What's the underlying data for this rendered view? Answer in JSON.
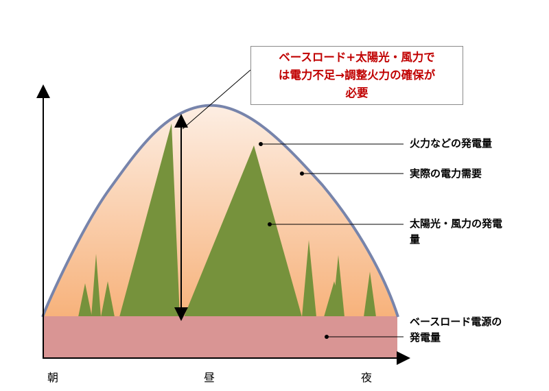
{
  "callout": {
    "line1": "ベースロード+太陽光・風力で",
    "line2": "は電力不足→調整火力の確保が",
    "line3": "必要"
  },
  "labels": {
    "thermal": "火力などの発電量",
    "demand": "実際の電力需要",
    "solar_wind_line1": "太陽光・風力の発電",
    "solar_wind_line2": "量",
    "baseload_line1": "ベースロード電源の",
    "baseload_line2": "発電量"
  },
  "axis": {
    "morning": "朝",
    "noon": "昼",
    "night": "夜"
  },
  "colors": {
    "demand_curve": "#7784ab",
    "fill_top": "#fbe5d6",
    "fill_bottom": "#f7b27b",
    "solar_wind": "#76923c",
    "baseload": "#d99594",
    "callout_text": "#c00000"
  }
}
